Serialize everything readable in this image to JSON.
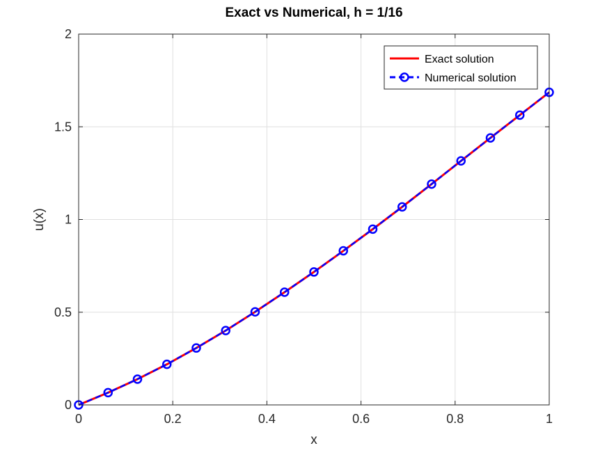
{
  "chart_data": {
    "type": "line",
    "title": "Exact vs Numerical, h = 1/16",
    "xlabel": "x",
    "ylabel": "u(x)",
    "xlim": [
      0,
      1
    ],
    "ylim": [
      0,
      2
    ],
    "xticks": [
      "0",
      "0.2",
      "0.4",
      "0.6",
      "0.8",
      "1"
    ],
    "yticks": [
      "0",
      "0.5",
      "1",
      "1.5",
      "2"
    ],
    "grid": true,
    "legend_position": "top-right",
    "x": [
      0,
      0.0625,
      0.125,
      0.1875,
      0.25,
      0.3125,
      0.375,
      0.4375,
      0.5,
      0.5625,
      0.625,
      0.6875,
      0.75,
      0.8125,
      0.875,
      0.9375,
      1
    ],
    "series": [
      {
        "name": "Exact solution",
        "color": "#ff0000",
        "style": "solid",
        "values": [
          0,
          0.066,
          0.139,
          0.219,
          0.307,
          0.401,
          0.502,
          0.608,
          0.717,
          0.831,
          0.948,
          1.068,
          1.191,
          1.316,
          1.44,
          1.563,
          1.686
        ]
      },
      {
        "name": "Numerical solution",
        "color": "#0000ff",
        "style": "dashed",
        "marker": "circle",
        "values": [
          0,
          0.066,
          0.139,
          0.219,
          0.307,
          0.401,
          0.502,
          0.608,
          0.717,
          0.831,
          0.948,
          1.068,
          1.191,
          1.316,
          1.44,
          1.563,
          1.686
        ]
      }
    ]
  }
}
